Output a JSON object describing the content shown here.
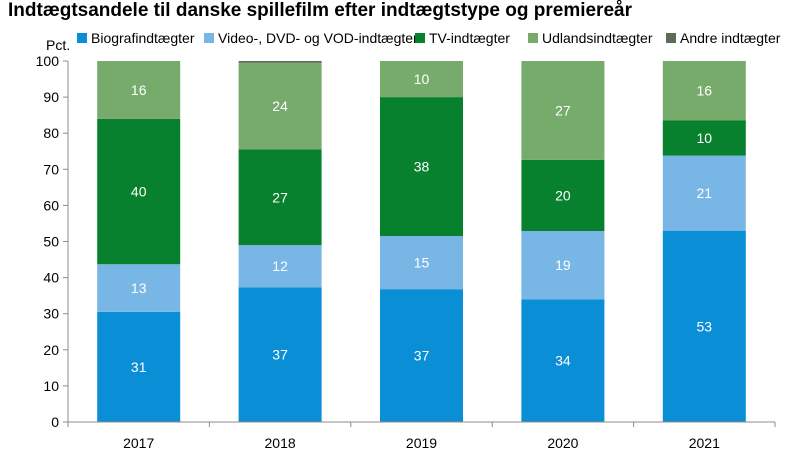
{
  "chart_data": {
    "type": "bar",
    "stacked": true,
    "title": "Indtægtsandele til danske spillefilm efter indtægtstype og premiereår",
    "ylabel": "Pct.",
    "xlabel": "",
    "ylim": [
      0,
      100
    ],
    "yticks": [
      0,
      10,
      20,
      30,
      40,
      50,
      60,
      70,
      80,
      90,
      100
    ],
    "grid": false,
    "legend_position": "top",
    "categories": [
      "2017",
      "2018",
      "2019",
      "2020",
      "2021"
    ],
    "series": [
      {
        "name": "Biografindtægter",
        "color": "#0A8ED5",
        "label_color": "#ffffff",
        "values": [
          30.5,
          37.3,
          36.8,
          34.0,
          53.0
        ],
        "labels": [
          "31",
          "37",
          "37",
          "34",
          "53"
        ]
      },
      {
        "name": "Video-, DVD- og VOD-indtægter",
        "color": "#78B6E6",
        "label_color": "#ffffff",
        "values": [
          13.2,
          11.7,
          14.7,
          18.9,
          20.8
        ],
        "labels": [
          "13",
          "12",
          "15",
          "19",
          "21"
        ]
      },
      {
        "name": "TV-indtægter",
        "color": "#08812F",
        "label_color": "#ffffff",
        "values": [
          40.3,
          26.5,
          38.5,
          19.7,
          9.8
        ],
        "labels": [
          "40",
          "27",
          "38",
          "20",
          "10"
        ]
      },
      {
        "name": "Udlandsindtægter",
        "color": "#76AB6C",
        "label_color": "#ffffff",
        "values": [
          16.0,
          24.0,
          10.0,
          27.4,
          16.4
        ],
        "labels": [
          "16",
          "24",
          "10",
          "27",
          "16"
        ]
      },
      {
        "name": "Andre indtægter",
        "color": "#5C6B55",
        "label_color": "#ffffff",
        "values": [
          0,
          0.5,
          0,
          0,
          0
        ],
        "labels": [
          "",
          "",
          "",
          "",
          ""
        ]
      }
    ]
  }
}
